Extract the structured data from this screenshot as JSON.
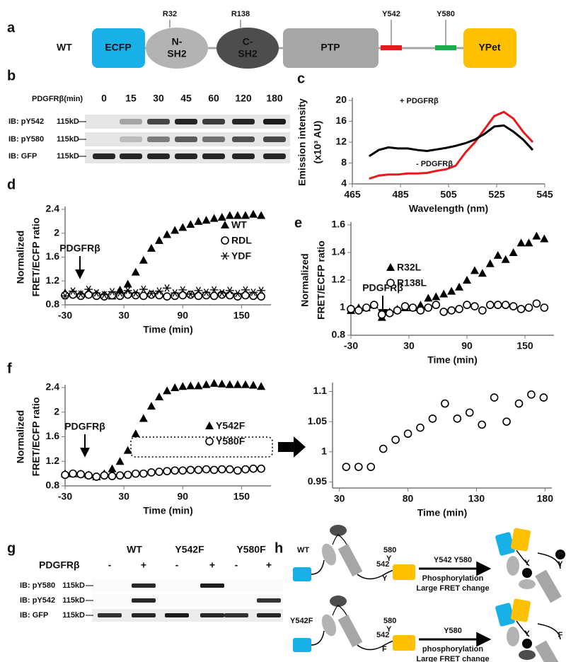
{
  "a": {
    "label": "a",
    "construct": "WT",
    "domains": [
      "ECFP",
      [
        "N-",
        "SH2"
      ],
      [
        "C-",
        "SH2"
      ],
      "PTP",
      "YPet"
    ],
    "sites": [
      "R32",
      "R138",
      "Y542",
      "Y580"
    ]
  },
  "b": {
    "label": "b",
    "treatment": "PDGFRβ(min)",
    "lanes": [
      "0",
      "15",
      "30",
      "45",
      "60",
      "120",
      "180"
    ],
    "rows": [
      "IB: pY542",
      "IB: pY580",
      "IB:  GFP"
    ],
    "size_marker": "115kD"
  },
  "g": {
    "label": "g",
    "groups": [
      "WT",
      "Y542F",
      "Y580F"
    ],
    "treatment": "PDGFRβ",
    "lanes": [
      "-",
      "+",
      "-",
      "+",
      "-",
      "+"
    ],
    "rows": [
      "IB: pY580",
      "IB: pY542",
      "IB: GFP"
    ],
    "size_marker": "115kD"
  },
  "h": {
    "label": "h",
    "rows": [
      {
        "name": "WT",
        "sites": [
          "542",
          "580"
        ],
        "before_marks": [
          "Y",
          "Y"
        ],
        "arrow_top": "Y542 Y580",
        "arrow_bottom": [
          "Phosphorylation",
          "Large FRET change"
        ],
        "after_marks": [
          "P",
          "Y",
          "P",
          "Y"
        ]
      },
      {
        "name": "Y542F",
        "sites": [
          "542",
          "580"
        ],
        "before_marks": [
          "F",
          "Y"
        ],
        "arrow_top": "Y580",
        "arrow_bottom": [
          "phosphorylation",
          "Large FRET change"
        ],
        "after_marks": [
          "P",
          "Y",
          "F"
        ]
      }
    ]
  },
  "chart_data": [
    {
      "type": "line",
      "panel": "c",
      "xlabel": "Wavelength (nm)",
      "ylabel": [
        "Emission intensity",
        "(x10³ AU)"
      ],
      "x": [
        472,
        476,
        480,
        484,
        488,
        492,
        496,
        500,
        504,
        508,
        512,
        516,
        520,
        524,
        528,
        532,
        536,
        540
      ],
      "xlim": [
        465,
        545
      ],
      "xticks": [
        465,
        485,
        505,
        525,
        545
      ],
      "ylim": [
        4,
        20
      ],
      "yticks": [
        4,
        8,
        12,
        16,
        20
      ],
      "series": [
        {
          "name": "+ PDGFRβ",
          "color": "#e8191c",
          "values": [
            5,
            5.6,
            5.8,
            5.8,
            6,
            6,
            6.1,
            6.5,
            6.8,
            7.5,
            10,
            12,
            14.5,
            17,
            17.8,
            16.5,
            14,
            12
          ]
        },
        {
          "name": "- PDGFRβ",
          "color": "#000000",
          "values": [
            9.3,
            10.5,
            11,
            10.8,
            10.8,
            10.5,
            10.3,
            10.6,
            10.9,
            11.3,
            11.8,
            12.5,
            13.6,
            15,
            15.2,
            14,
            12.5,
            10.5
          ]
        }
      ]
    },
    {
      "type": "scatter",
      "panel": "d",
      "annotation": "PDGFRβ",
      "xlabel": "Time (min)",
      "ylabel": [
        "Normalized",
        "FRET/ECFP ratio"
      ],
      "x": [
        -30,
        -22,
        -14,
        -6,
        2,
        10,
        18,
        26,
        34,
        42,
        50,
        58,
        66,
        74,
        82,
        90,
        98,
        106,
        114,
        122,
        130,
        138,
        146,
        154,
        162,
        170
      ],
      "xlim": [
        -30,
        180
      ],
      "xticks": [
        -30,
        30,
        90,
        150
      ],
      "ylim": [
        0.8,
        2.4
      ],
      "yticks": [
        0.8,
        1.2,
        1.6,
        2,
        2.4
      ],
      "series": [
        {
          "name": "WT",
          "marker": "triangle",
          "color": "#000000",
          "values": [
            1,
            1,
            0.98,
            1.02,
            0.98,
            0.97,
            0.95,
            1.05,
            1.15,
            1.35,
            1.55,
            1.75,
            1.88,
            1.98,
            2.05,
            2.1,
            2.15,
            2.2,
            2.22,
            2.25,
            2.27,
            2.3,
            2.3,
            2.3,
            2.32,
            2.3
          ]
        },
        {
          "name": "RDL",
          "marker": "circle",
          "color": "#000000",
          "values": [
            0.96,
            0.97,
            0.95,
            0.97,
            0.95,
            0.94,
            0.96,
            0.95,
            0.97,
            0.96,
            0.95,
            0.97,
            0.96,
            0.94,
            0.95,
            0.96,
            0.97,
            0.95,
            0.96,
            0.95,
            0.97,
            0.96,
            0.94,
            0.96,
            0.95,
            0.94
          ]
        },
        {
          "name": "YDF",
          "marker": "asterisk",
          "color": "#000000",
          "values": [
            0.95,
            1.03,
            0.98,
            1.06,
            1.0,
            0.97,
            1.02,
            1.0,
            1.04,
            1.0,
            1.06,
            0.99,
            1.03,
            1.08,
            1.0,
            1.05,
            0.98,
            1.04,
            1.01,
            1.05,
            1.0,
            1.04,
            0.99,
            1.05,
            1.01,
            1.04
          ]
        }
      ]
    },
    {
      "type": "scatter",
      "panel": "e",
      "annotation": "PDGFRβ",
      "xlabel": "Time (min)",
      "ylabel": [
        "Normalized",
        "FRET/ECFP ratio"
      ],
      "x": [
        -30,
        -22,
        -14,
        -6,
        2,
        10,
        18,
        26,
        34,
        42,
        50,
        58,
        66,
        74,
        82,
        90,
        98,
        106,
        114,
        122,
        130,
        138,
        146,
        154,
        162,
        170
      ],
      "xlim": [
        -30,
        180
      ],
      "xticks": [
        -30,
        30,
        90,
        150
      ],
      "ylim": [
        0.8,
        1.6
      ],
      "yticks": [
        0.8,
        1,
        1.2,
        1.4,
        1.6
      ],
      "series": [
        {
          "name": "R32L",
          "marker": "triangle",
          "color": "#000000",
          "values": [
            0.98,
            1,
            1,
            1.02,
            0.93,
            0.97,
            0.99,
            1,
            1,
            1.02,
            1.07,
            1.08,
            1.1,
            1.12,
            1.15,
            1.2,
            1.27,
            1.25,
            1.32,
            1.38,
            1.35,
            1.4,
            1.47,
            1.47,
            1.52,
            1.5
          ]
        },
        {
          "name": "R138L",
          "marker": "circle",
          "color": "#000000",
          "values": [
            0.99,
            0.98,
            1,
            1.02,
            0.95,
            0.96,
            0.98,
            1.01,
            1,
            0.98,
            1,
            1.02,
            0.97,
            0.98,
            0.99,
            1.02,
            1.01,
            0.98,
            1.02,
            1.02,
            1.02,
            1.01,
            0.99,
            1,
            1.03,
            1
          ]
        }
      ]
    },
    {
      "type": "scatter",
      "panel": "f",
      "annotation": "PDGFRβ",
      "xlabel": "Time (min)",
      "ylabel": [
        "Normalized",
        "FRET/ECFP ratio"
      ],
      "x": [
        -30,
        -22,
        -14,
        -6,
        2,
        10,
        18,
        26,
        34,
        42,
        50,
        58,
        66,
        74,
        82,
        90,
        98,
        106,
        114,
        122,
        130,
        138,
        146,
        154,
        162,
        170
      ],
      "xlim": [
        -30,
        180
      ],
      "xticks": [
        -30,
        30,
        90,
        150
      ],
      "ylim": [
        0.8,
        2.4
      ],
      "yticks": [
        0.8,
        1.2,
        1.6,
        2,
        2.4
      ],
      "series": [
        {
          "name": "Y542F",
          "marker": "triangle",
          "color": "#000000",
          "values": [
            1,
            1,
            1,
            0.98,
            0.95,
            1,
            1.08,
            1.2,
            1.38,
            1.65,
            1.9,
            2.1,
            2.25,
            2.35,
            2.4,
            2.42,
            2.43,
            2.43,
            2.45,
            2.47,
            2.46,
            2.45,
            2.45,
            2.45,
            2.44,
            2.42
          ]
        },
        {
          "name": "Y580F",
          "marker": "circle",
          "color": "#000000",
          "values": [
            0.98,
            1,
            0.99,
            0.97,
            0.95,
            0.97,
            0.96,
            0.97,
            0.98,
            1,
            1,
            1.02,
            1.03,
            1.04,
            1.05,
            1.05,
            1.06,
            1.06,
            1.07,
            1.06,
            1.07,
            1.07,
            1.05,
            1.07,
            1.08,
            1.08
          ]
        }
      ]
    },
    {
      "type": "scatter",
      "xlabel": "Time (min)",
      "x": [
        35,
        44,
        53,
        62,
        71,
        80,
        89,
        98,
        107,
        116,
        125,
        134,
        143,
        152,
        161,
        170,
        179
      ],
      "xlim": [
        25,
        185
      ],
      "xticks": [
        30,
        80,
        130,
        180
      ],
      "ylim": [
        0.94,
        1.11
      ],
      "yticks": [
        0.95,
        1,
        1.05,
        1.1
      ],
      "series": [
        {
          "marker": "circle",
          "color": "#000000",
          "values": [
            0.975,
            0.975,
            0.975,
            1.005,
            1.02,
            1.03,
            1.04,
            1.055,
            1.08,
            1.055,
            1.065,
            1.045,
            1.09,
            1.05,
            1.08,
            1.095,
            1.09
          ]
        }
      ]
    }
  ]
}
